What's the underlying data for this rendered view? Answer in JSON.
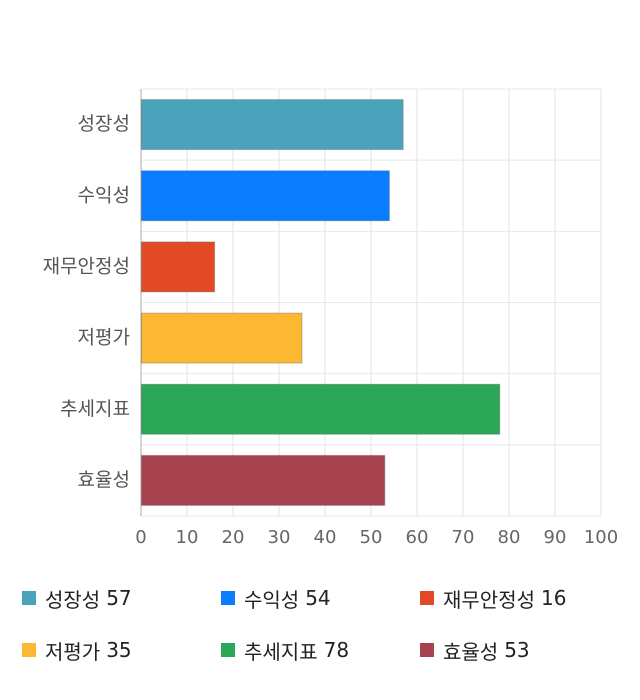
{
  "chart_data": {
    "type": "bar",
    "orientation": "horizontal",
    "title": "",
    "xlabel": "",
    "ylabel": "",
    "categories": [
      "성장성",
      "수익성",
      "재무안정성",
      "저평가",
      "추세지표",
      "효율성"
    ],
    "values": [
      57,
      54,
      16,
      35,
      78,
      53
    ],
    "colors": [
      "#4aa3ba",
      "#0a7cff",
      "#e24a26",
      "#fdb833",
      "#2aa757",
      "#a7434f"
    ],
    "xlim": [
      0,
      100
    ],
    "xticks": [
      0,
      10,
      20,
      30,
      40,
      50,
      60,
      70,
      80,
      90,
      100
    ],
    "grid": true,
    "legend_position": "bottom"
  },
  "legend": {
    "items": [
      {
        "label": "성장성",
        "value": "57",
        "color": "#4aa3ba"
      },
      {
        "label": "수익성",
        "value": "54",
        "color": "#0a7cff"
      },
      {
        "label": "재무안정성",
        "value": "16",
        "color": "#e24a26"
      },
      {
        "label": "저평가",
        "value": "35",
        "color": "#fdb833"
      },
      {
        "label": "추세지표",
        "value": "78",
        "color": "#2aa757"
      },
      {
        "label": "효율성",
        "value": "53",
        "color": "#a7434f"
      }
    ]
  }
}
